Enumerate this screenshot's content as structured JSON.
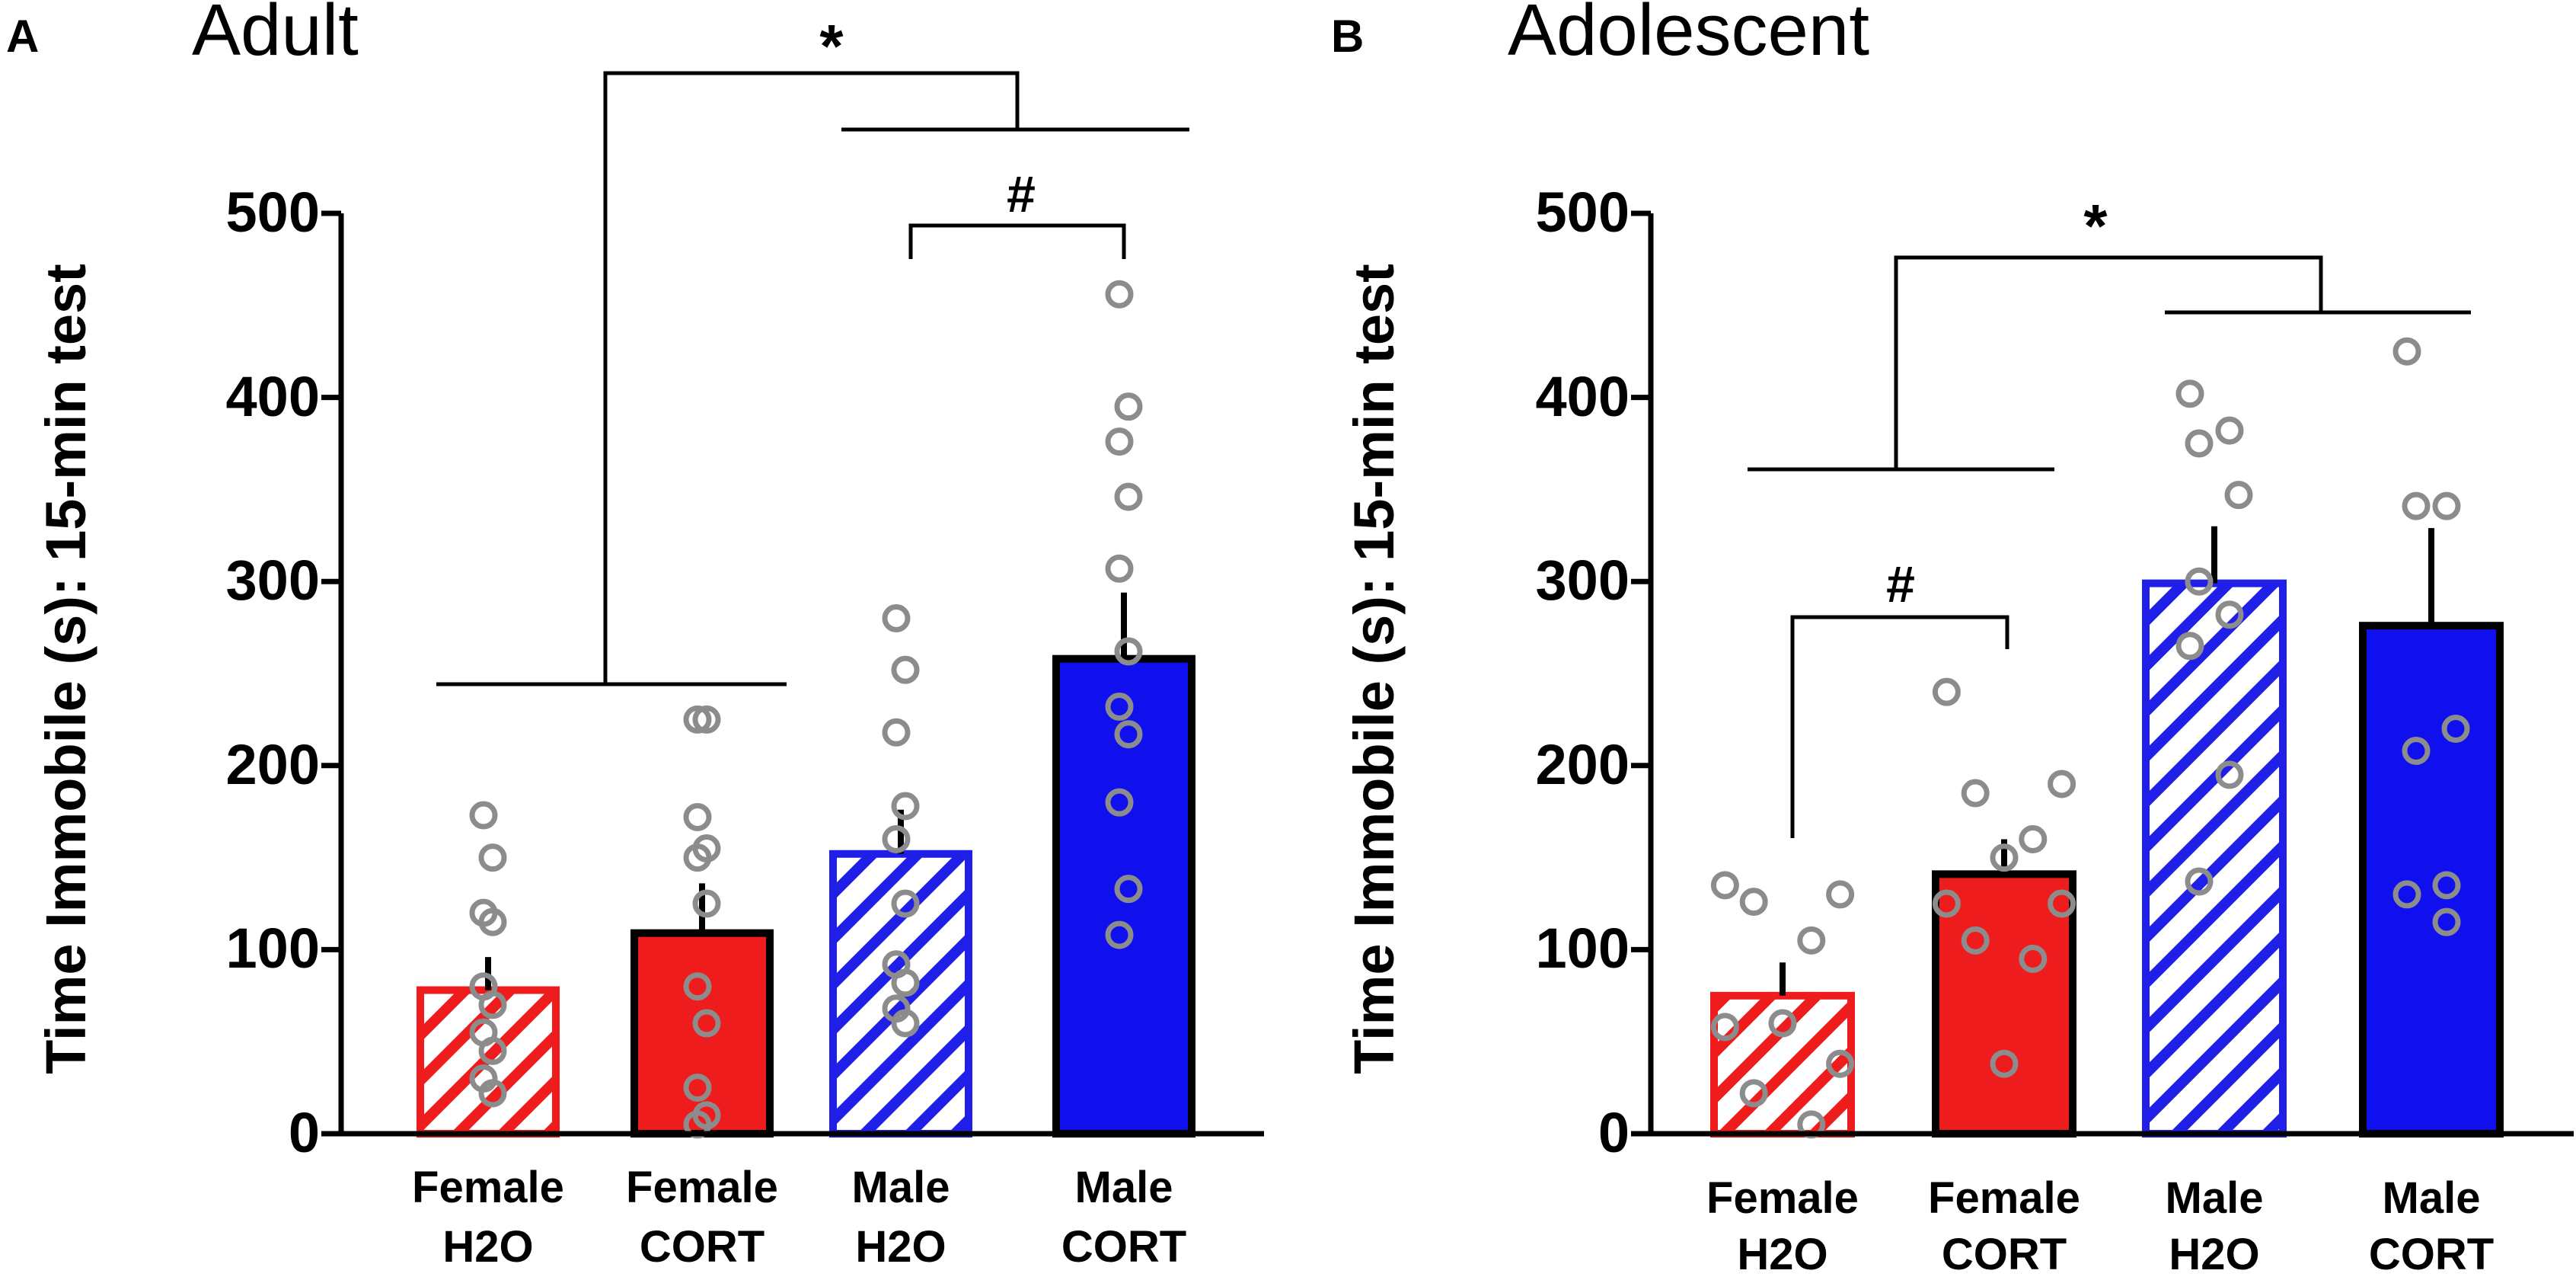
{
  "chart_data": [
    {
      "type": "bar",
      "panel_letter": "A",
      "title": "Adult",
      "ylabel": "Time Immobile (s): 15-min test",
      "ylim": [
        0,
        500
      ],
      "yticks": [
        "0",
        "100",
        "200",
        "300",
        "400",
        "500"
      ],
      "categories": [
        {
          "line1": "Female",
          "line2": "H2O"
        },
        {
          "line1": "Female",
          "line2": "CORT"
        },
        {
          "line1": "Male",
          "line2": "H2O"
        },
        {
          "line1": "Male",
          "line2": "CORT"
        }
      ],
      "values": [
        78,
        109,
        152,
        258
      ],
      "errors": [
        18,
        27,
        24,
        36
      ],
      "points": [
        [
          173,
          150,
          120,
          115,
          80,
          70,
          55,
          45,
          30,
          22
        ],
        [
          225,
          225,
          172,
          155,
          150,
          125,
          80,
          60,
          25,
          10,
          5
        ],
        [
          280,
          252,
          218,
          178,
          160,
          125,
          92,
          82,
          68,
          60
        ],
        [
          456,
          395,
          376,
          346,
          307,
          262,
          232,
          217,
          180,
          133,
          108
        ]
      ],
      "colors": [
        "#ee1c1c",
        "#ee1c1c",
        "#1f1fe8",
        "#1010ee"
      ],
      "fill_style": [
        "hatched",
        "solid",
        "hatched",
        "solid"
      ],
      "significance": [
        {
          "label": "*",
          "comparison": "Female vs Male (main effect)"
        },
        {
          "label": "#",
          "comparison": "Male H2O vs Male CORT"
        }
      ]
    },
    {
      "type": "bar",
      "panel_letter": "B",
      "title": "Adolescent",
      "ylabel": "Time Immobile (s): 15-min test",
      "ylim": [
        0,
        500
      ],
      "yticks": [
        "0",
        "100",
        "200",
        "300",
        "400",
        "500"
      ],
      "categories": [
        {
          "line1": "Female",
          "line2": "H2O"
        },
        {
          "line1": "Female",
          "line2": "CORT"
        },
        {
          "line1": "Male",
          "line2": "H2O"
        },
        {
          "line1": "Male",
          "line2": "CORT"
        }
      ],
      "values": [
        75,
        141,
        299,
        276
      ],
      "errors": [
        18,
        19,
        31,
        53
      ],
      "points": [
        [
          135,
          130,
          126,
          105,
          60,
          58,
          38,
          22,
          5
        ],
        [
          240,
          190,
          185,
          160,
          150,
          125,
          125,
          105,
          95,
          38
        ],
        [
          402,
          382,
          375,
          347,
          300,
          282,
          265,
          195,
          137
        ],
        [
          425,
          341,
          341,
          220,
          208,
          135,
          130,
          115
        ]
      ],
      "colors": [
        "#ee1c1c",
        "#ee1c1c",
        "#1f1fe8",
        "#1010ee"
      ],
      "fill_style": [
        "hatched",
        "solid",
        "hatched",
        "solid"
      ],
      "significance": [
        {
          "label": "*",
          "comparison": "Female vs Male (main effect)"
        },
        {
          "label": "#",
          "comparison": "Female H2O vs Female CORT"
        }
      ]
    }
  ]
}
